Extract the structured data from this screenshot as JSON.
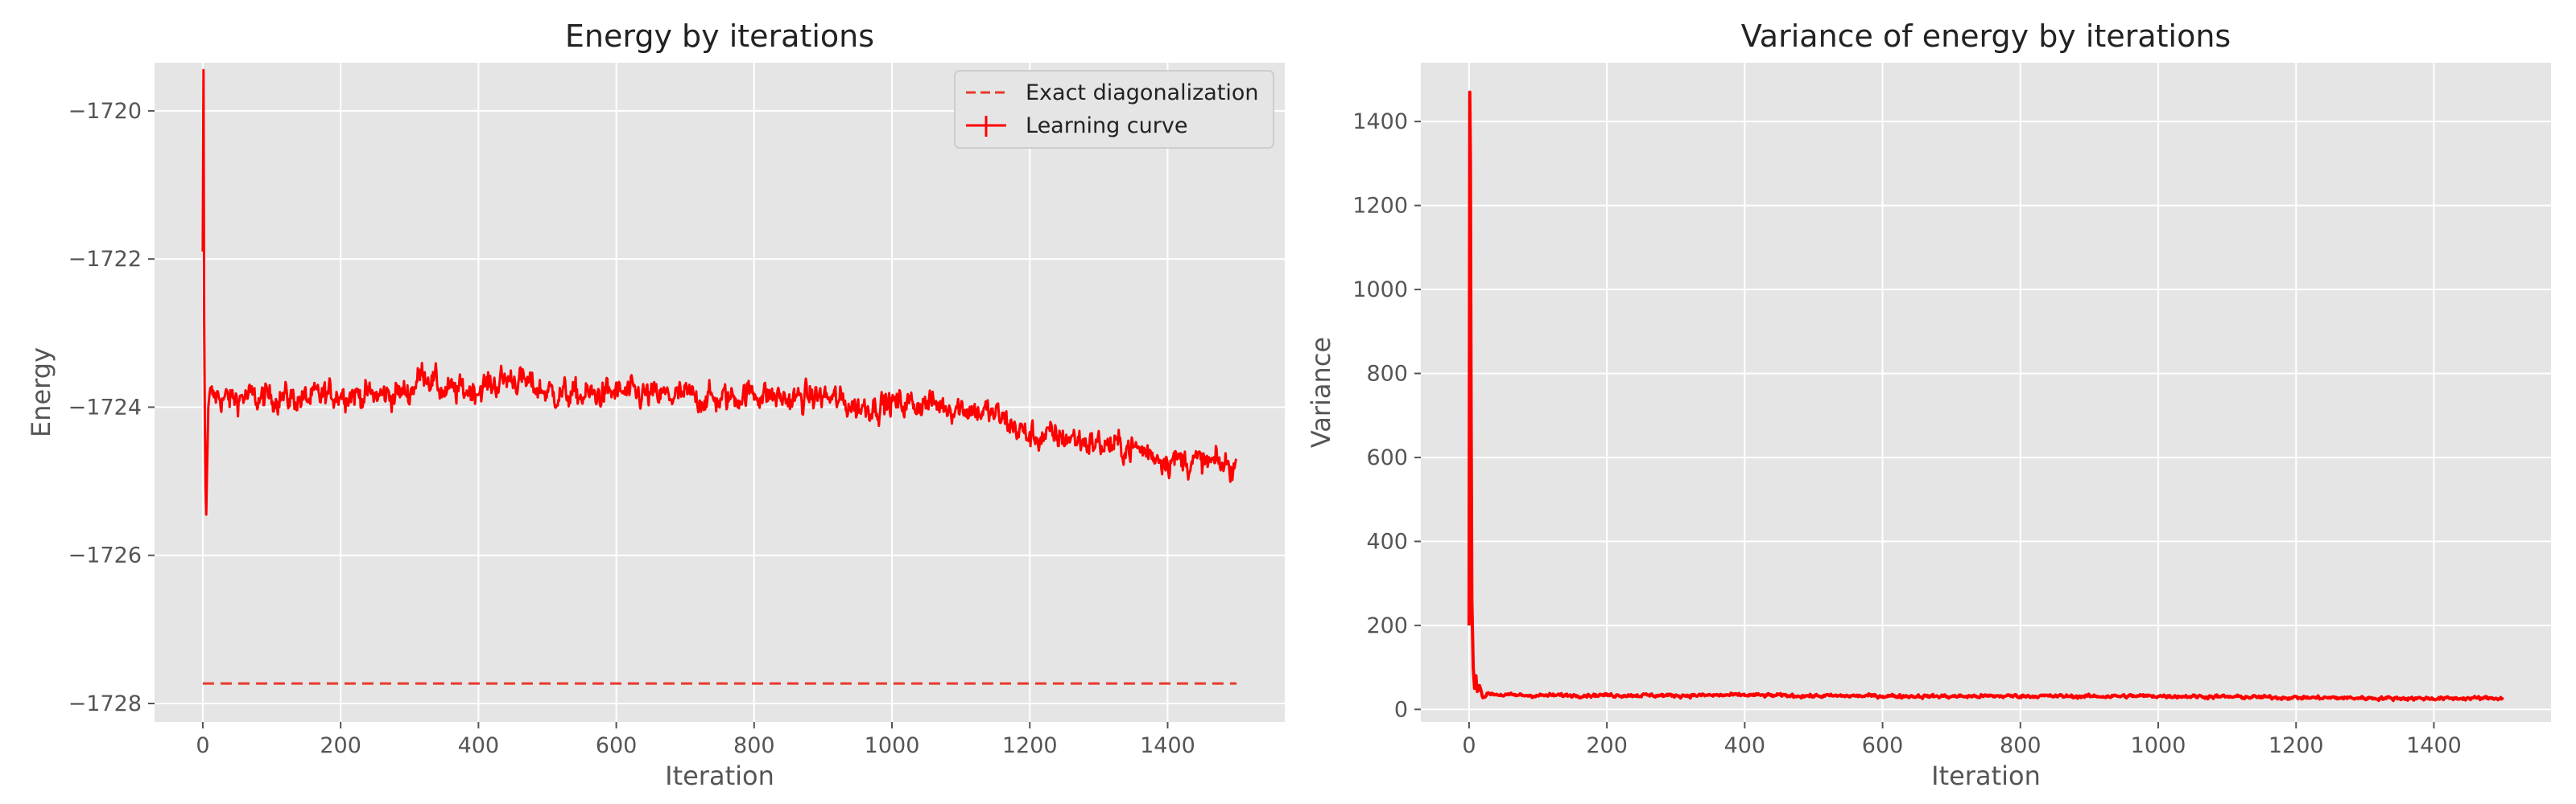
{
  "colors": {
    "background": "#ffffff",
    "plot_bg": "#e5e5e5",
    "grid": "#ffffff",
    "series_red": "#ff0000",
    "reference_red": "#e8382c",
    "tick_text": "#555555",
    "label_text": "#555555",
    "title_text": "#222222"
  },
  "chart_data": [
    {
      "type": "line",
      "title": "Energy by iterations",
      "xlabel": "Iteration",
      "ylabel": "Energy",
      "xlim": [
        -70,
        1570
      ],
      "ylim": [
        -1728.25,
        -1719.35
      ],
      "xticks": [
        0,
        200,
        400,
        600,
        800,
        1000,
        1200,
        1400
      ],
      "xtick_labels": [
        "0",
        "200",
        "400",
        "600",
        "800",
        "1000",
        "1200",
        "1400"
      ],
      "yticks": [
        -1720,
        -1722,
        -1724,
        -1726,
        -1728
      ],
      "ytick_labels": [
        "−1720",
        "−1722",
        "−1724",
        "−1726",
        "−1728"
      ],
      "grid": true,
      "legend": {
        "position": "top-right",
        "entries": [
          "Exact diagonalization",
          "Learning curve"
        ]
      },
      "series": [
        {
          "name": "Exact diagonalization",
          "style": "dashed",
          "x": [
            0,
            1500
          ],
          "y": [
            -1727.73,
            -1727.73
          ]
        },
        {
          "name": "Learning curve",
          "style": "solid-noisy",
          "x": [
            0,
            1,
            2,
            3,
            4,
            5,
            6,
            8,
            10,
            15,
            20,
            40,
            60,
            80,
            100,
            150,
            200,
            250,
            300,
            320,
            350,
            400,
            450,
            500,
            550,
            600,
            650,
            700,
            750,
            800,
            850,
            900,
            950,
            1000,
            1050,
            1100,
            1150,
            1200,
            1250,
            1300,
            1350,
            1400,
            1450,
            1500
          ],
          "y": [
            -1721.9,
            -1719.45,
            -1722.8,
            -1724.2,
            -1725.1,
            -1725.45,
            -1724.9,
            -1724.0,
            -1723.8,
            -1723.9,
            -1723.85,
            -1723.9,
            -1723.85,
            -1723.9,
            -1723.85,
            -1723.9,
            -1723.8,
            -1723.85,
            -1723.8,
            -1723.5,
            -1723.8,
            -1723.75,
            -1723.6,
            -1723.8,
            -1723.85,
            -1723.8,
            -1723.85,
            -1723.85,
            -1723.9,
            -1723.8,
            -1723.9,
            -1723.85,
            -1724.0,
            -1723.95,
            -1723.95,
            -1724.0,
            -1724.1,
            -1724.4,
            -1724.4,
            -1724.5,
            -1724.55,
            -1724.7,
            -1724.75,
            -1724.8
          ]
        }
      ]
    },
    {
      "type": "line",
      "title": "Variance of energy by iterations",
      "xlabel": "Iteration",
      "ylabel": "Variance",
      "xlim": [
        -70,
        1570
      ],
      "ylim": [
        -30,
        1540
      ],
      "xticks": [
        0,
        200,
        400,
        600,
        800,
        1000,
        1200,
        1400
      ],
      "xtick_labels": [
        "0",
        "200",
        "400",
        "600",
        "800",
        "1000",
        "1200",
        "1400"
      ],
      "yticks": [
        0,
        200,
        400,
        600,
        800,
        1000,
        1200,
        1400
      ],
      "ytick_labels": [
        "0",
        "200",
        "400",
        "600",
        "800",
        "1000",
        "1200",
        "1400"
      ],
      "grid": true,
      "series": [
        {
          "style": "solid-noisy",
          "x": [
            0,
            1,
            2,
            3,
            4,
            6,
            8,
            10,
            12,
            15,
            20,
            30,
            50,
            100,
            200,
            300,
            400,
            500,
            600,
            700,
            800,
            900,
            1000,
            1100,
            1200,
            1300,
            1400,
            1500
          ],
          "y": [
            200,
            1470,
            1310,
            700,
            260,
            100,
            50,
            80,
            40,
            60,
            30,
            38,
            34,
            33,
            34,
            33,
            34,
            32,
            32,
            31,
            32,
            31,
            32,
            30,
            28,
            27,
            26,
            27
          ]
        }
      ]
    }
  ]
}
